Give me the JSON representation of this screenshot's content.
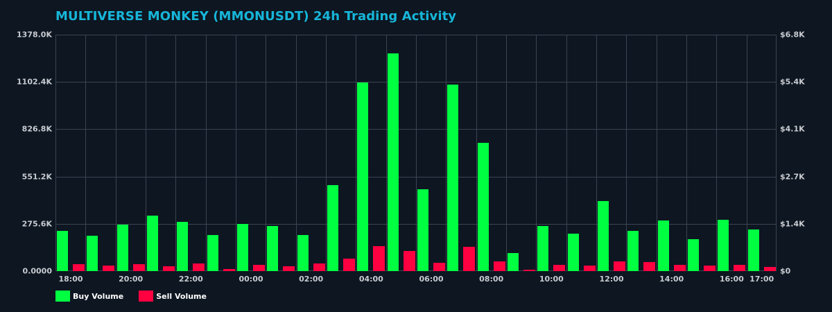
{
  "chart_data": {
    "type": "bar",
    "title": "MULTIVERSE MONKEY (MMONUSDT) 24h Trading Activity",
    "xlabel": "",
    "ylabel_left": "Volume",
    "ylabel_right": "USD",
    "ylim": [
      0,
      1378000
    ],
    "ylim_right": [
      0,
      6800
    ],
    "grid": true,
    "legend_position": "bottom-left",
    "categories": [
      "18:00",
      "19:00",
      "20:00",
      "21:00",
      "22:00",
      "23:00",
      "00:00",
      "01:00",
      "02:00",
      "03:00",
      "04:00",
      "05:00",
      "06:00",
      "07:00",
      "08:00",
      "09:00",
      "10:00",
      "11:00",
      "12:00",
      "13:00",
      "14:00",
      "15:00",
      "16:00",
      "17:00"
    ],
    "series": [
      {
        "name": "Buy Volume",
        "color": "#00ff41",
        "values": [
          234000,
          206000,
          271000,
          323000,
          287000,
          210000,
          275000,
          263000,
          210000,
          501000,
          1099000,
          1269000,
          477000,
          1087000,
          748000,
          105000,
          263000,
          218000,
          408000,
          234000,
          295000,
          186000,
          299000,
          242000
        ]
      },
      {
        "name": "Sell Volume",
        "color": "#ff0040",
        "values": [
          40000,
          32000,
          40000,
          28000,
          44000,
          12000,
          36000,
          28000,
          44000,
          73000,
          145000,
          117000,
          48000,
          141000,
          57000,
          8000,
          36000,
          32000,
          57000,
          53000,
          36000,
          32000,
          36000,
          24000
        ]
      }
    ],
    "y_ticks_left": [
      "0.0000",
      "275.6K",
      "551.2K",
      "826.8K",
      "1102.4K",
      "1378.0K"
    ],
    "y_ticks_right": [
      "$0",
      "$1.4K",
      "$2.7K",
      "$4.1K",
      "$5.4K",
      "$6.8K"
    ],
    "x_ticks": [
      {
        "label": "18:00",
        "index": 0
      },
      {
        "label": "20:00",
        "index": 2
      },
      {
        "label": "22:00",
        "index": 4
      },
      {
        "label": "00:00",
        "index": 6
      },
      {
        "label": "02:00",
        "index": 8
      },
      {
        "label": "04:00",
        "index": 10
      },
      {
        "label": "06:00",
        "index": 12
      },
      {
        "label": "08:00",
        "index": 14
      },
      {
        "label": "10:00",
        "index": 16
      },
      {
        "label": "12:00",
        "index": 18
      },
      {
        "label": "14:00",
        "index": 20
      },
      {
        "label": "16:00",
        "index": 22
      },
      {
        "label": "17:00",
        "index": 23
      }
    ]
  },
  "legend": {
    "buy_label": "Buy Volume",
    "sell_label": "Sell Volume"
  }
}
